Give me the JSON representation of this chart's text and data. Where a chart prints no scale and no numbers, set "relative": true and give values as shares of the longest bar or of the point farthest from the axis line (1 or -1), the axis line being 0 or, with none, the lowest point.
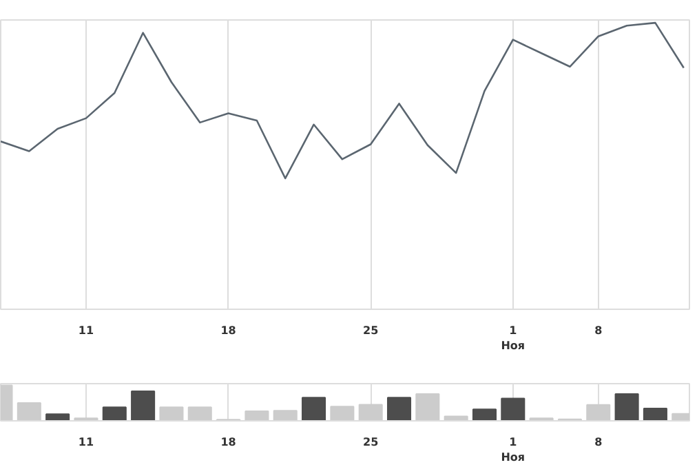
{
  "chart_data": [
    {
      "type": "line",
      "relative": true,
      "grid": "x",
      "marker": "none",
      "line_style": "solid",
      "categories": [
        null,
        null,
        null,
        "11",
        null,
        null,
        null,
        null,
        "18",
        null,
        null,
        null,
        null,
        "25",
        null,
        null,
        null,
        null,
        "1\nНоя",
        null,
        null,
        "8",
        null,
        null,
        null
      ],
      "series": [
        {
          "color": "#5b6670",
          "values": [
            0.586,
            0.552,
            0.63,
            0.667,
            0.755,
            0.965,
            0.793,
            0.652,
            0.684,
            0.659,
            0.457,
            0.645,
            0.524,
            0.576,
            0.718,
            0.573,
            0.476,
            0.762,
            0.941,
            0.894,
            0.847,
            0.953,
            0.99,
            1.0,
            0.843
          ]
        }
      ]
    },
    {
      "type": "bar",
      "relative": true,
      "grid": "x",
      "categories": [
        null,
        null,
        null,
        "11",
        null,
        null,
        null,
        null,
        "18",
        null,
        null,
        null,
        null,
        "25",
        null,
        null,
        null,
        null,
        "1\nНоя",
        null,
        null,
        "8",
        null,
        null,
        null
      ],
      "values": [
        1.0,
        0.505,
        0.189,
        0.073,
        0.386,
        0.838,
        0.386,
        0.386,
        0.035,
        0.27,
        0.289,
        0.657,
        0.405,
        0.459,
        0.657,
        0.757,
        0.127,
        0.324,
        0.63,
        0.073,
        0.046,
        0.451,
        0.757,
        0.351,
        0.197
      ],
      "colors": [
        "#cccccc",
        "#cccccc",
        "#4d4d4d",
        "#cccccc",
        "#4d4d4d",
        "#4d4d4d",
        "#cccccc",
        "#cccccc",
        "#cccccc",
        "#cccccc",
        "#cccccc",
        "#4d4d4d",
        "#cccccc",
        "#cccccc",
        "#4d4d4d",
        "#cccccc",
        "#cccccc",
        "#4d4d4d",
        "#4d4d4d",
        "#cccccc",
        "#cccccc",
        "#cccccc",
        "#4d4d4d",
        "#4d4d4d",
        "#cccccc"
      ]
    }
  ]
}
